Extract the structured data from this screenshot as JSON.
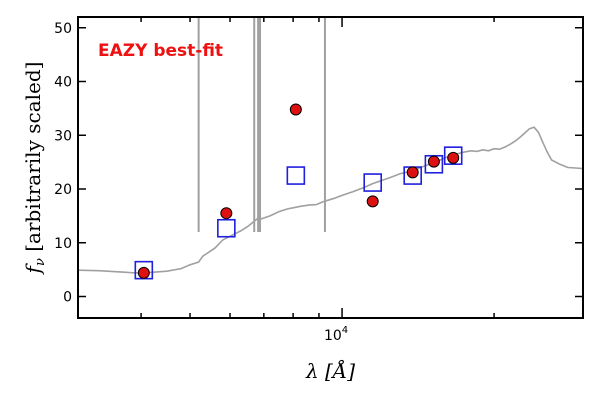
{
  "chart_data": {
    "type": "scatter",
    "title": "",
    "annotation": "EAZY best-fit",
    "xlabel": "λ [Å]",
    "ylabel": "f_ν [arbitrarily scaled]",
    "xscale": "log",
    "xlim": [
      3000,
      30000
    ],
    "ylim": [
      -4,
      52
    ],
    "yticks": [
      0,
      10,
      20,
      30,
      40,
      50
    ],
    "xticks_labeled": [
      {
        "value": 10000,
        "label": "10^4"
      }
    ],
    "colors": {
      "annotation": "#ee1111",
      "model": "#a0a0a0",
      "observed": "#dd1111",
      "fit": "#1f1fdd"
    },
    "model_spectrum": {
      "name": "",
      "x": [
        3000,
        3300,
        3600,
        3900,
        4200,
        4500,
        4800,
        5000,
        5200,
        5300,
        5400,
        5600,
        5800,
        6000,
        6300,
        6500,
        6700,
        6800,
        6900,
        7000,
        7200,
        7500,
        7800,
        8000,
        8300,
        8600,
        8900,
        9100,
        9300,
        9600,
        10000,
        10500,
        11000,
        11500,
        12000,
        12500,
        13000,
        13500,
        14000,
        14500,
        15000,
        15500,
        16000,
        16500,
        17000,
        17500,
        18000,
        18500,
        19000,
        19500,
        20000,
        20500,
        21000,
        21500,
        22000,
        22500,
        23000,
        23500,
        24000,
        24500,
        25000,
        25500,
        26000,
        27000,
        28000,
        29000,
        30000
      ],
      "y": [
        4.9,
        4.8,
        4.6,
        4.4,
        4.5,
        4.7,
        5.2,
        5.9,
        6.4,
        7.5,
        8.0,
        9.0,
        10.5,
        11.2,
        12.2,
        13.0,
        14.0,
        14.5,
        14.4,
        14.6,
        15.0,
        15.8,
        16.3,
        16.5,
        16.8,
        17.0,
        17.1,
        17.5,
        17.8,
        18.2,
        18.8,
        19.5,
        20.2,
        21.0,
        21.6,
        22.2,
        22.8,
        23.2,
        23.6,
        24.2,
        24.7,
        25.2,
        25.8,
        26.3,
        26.6,
        26.9,
        27.1,
        27.0,
        27.3,
        27.1,
        27.5,
        27.4,
        27.8,
        28.3,
        28.9,
        29.6,
        30.4,
        31.2,
        31.5,
        30.5,
        28.6,
        26.8,
        25.4,
        24.6,
        24.0,
        23.9,
        23.8
      ]
    },
    "emission_lines": [
      {
        "x": 5200,
        "y": 52
      },
      {
        "x": 6700,
        "y": 52
      },
      {
        "x": 6820,
        "y": 52
      },
      {
        "x": 6880,
        "y": 52
      },
      {
        "x": 9250,
        "y": 52
      }
    ],
    "observed": {
      "name": "",
      "x": [
        4050,
        5900,
        8100,
        11500,
        13800,
        15200,
        16600
      ],
      "y": [
        4.4,
        15.5,
        34.8,
        17.7,
        23.1,
        25.1,
        25.8
      ]
    },
    "model_photometry": {
      "name": "",
      "x": [
        4050,
        5900,
        8100,
        11500,
        13800,
        15200,
        16600
      ],
      "y": [
        4.9,
        12.7,
        22.5,
        21.2,
        22.5,
        24.6,
        26.2
      ]
    }
  }
}
